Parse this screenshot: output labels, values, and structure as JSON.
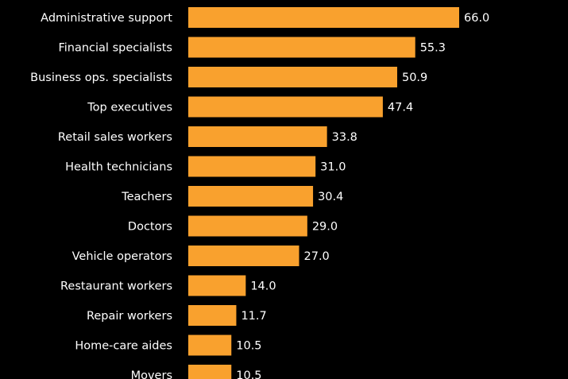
{
  "chart_data": {
    "type": "bar",
    "orientation": "horizontal",
    "categories": [
      "Administrative support",
      "Financial specialists",
      "Business ops. specialists",
      "Top executives",
      "Retail sales workers",
      "Health technicians",
      "Teachers",
      "Doctors",
      "Vehicle operators",
      "Restaurant workers",
      "Repair workers",
      "Home-care aides",
      "Movers"
    ],
    "values": [
      66.0,
      55.3,
      50.9,
      47.4,
      33.8,
      31.0,
      30.4,
      29.0,
      27.0,
      14.0,
      11.7,
      10.5,
      10.5
    ],
    "value_labels": [
      "66.0",
      "55.3",
      "50.9",
      "47.4",
      "33.8",
      "31.0",
      "30.4",
      "29.0",
      "27.0",
      "14.0",
      "11.7",
      "10.5",
      "10.5"
    ],
    "title": "",
    "xlabel": "",
    "ylabel": "",
    "xlim": [
      0,
      66
    ],
    "grid": false,
    "colors": {
      "bar": "#f9a12e",
      "background": "#000000",
      "text": "#ffffff"
    }
  }
}
